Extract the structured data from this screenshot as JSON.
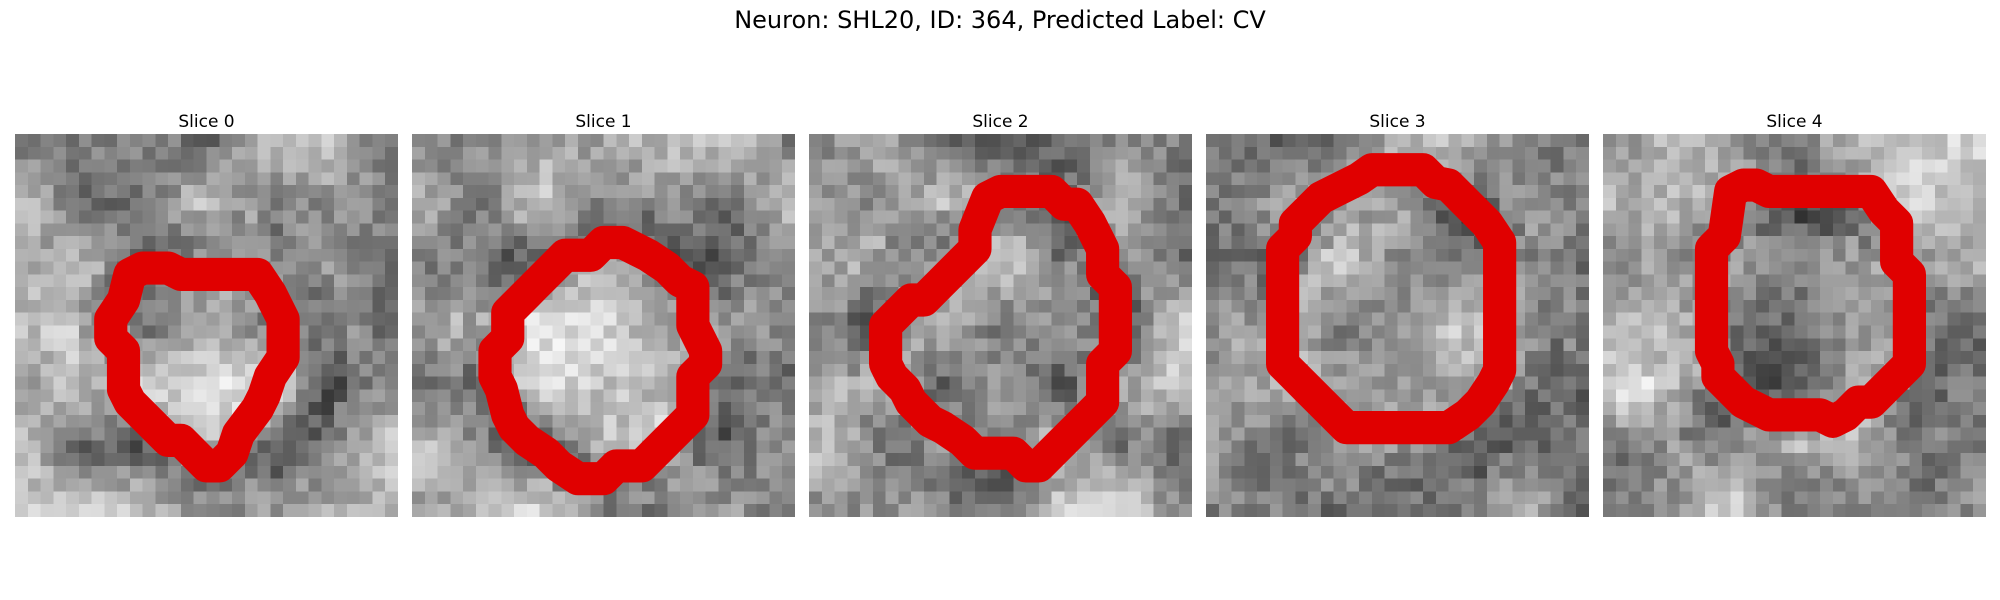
{
  "figure": {
    "title": "Neuron: SHL20, ID: 364, Predicted Label: CV"
  },
  "panels": [
    {
      "title": "Slice 0"
    },
    {
      "title": "Slice 1"
    },
    {
      "title": "Slice 2"
    },
    {
      "title": "Slice 3"
    },
    {
      "title": "Slice 4"
    }
  ],
  "colors": {
    "contour": "#e00000"
  }
}
